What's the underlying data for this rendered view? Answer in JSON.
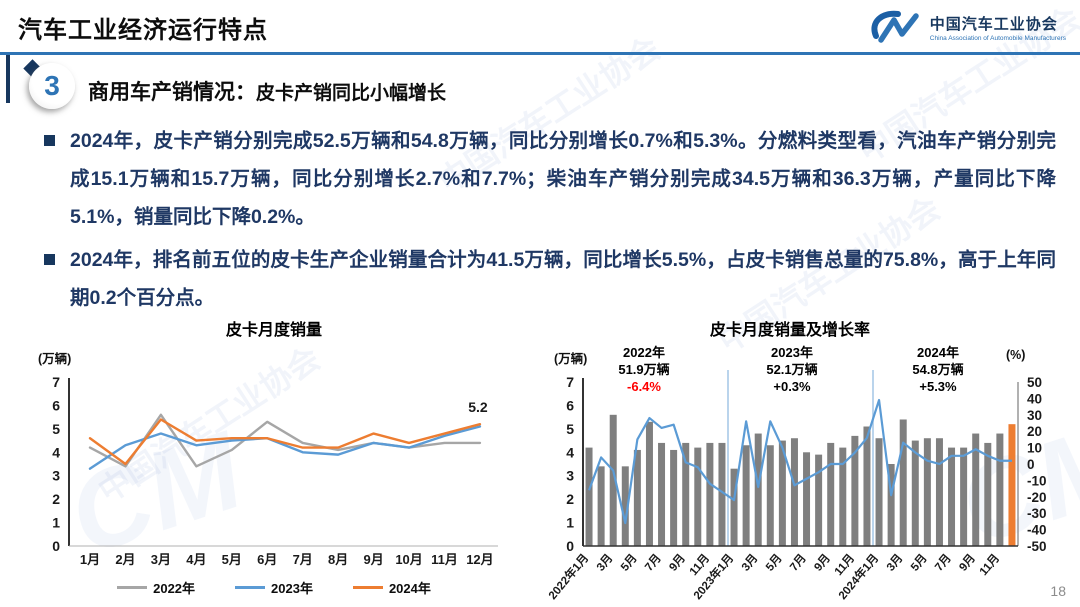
{
  "header": {
    "title": "汽车工业经济运行特点"
  },
  "logo": {
    "name_cn": "中国汽车工业协会",
    "name_en": "China Association of Automobile Manufacturers"
  },
  "section": {
    "number": "3",
    "title_prefix": "商用车产销情况：",
    "title_highlight": "皮卡产销同比小幅增长"
  },
  "bullets": [
    "2024年，皮卡产销分别完成52.5万辆和54.8万辆，同比分别增长0.7%和5.3%。分燃料类型看，汽油车产销分别完成15.1万辆和15.7万辆，同比分别增长2.7%和7.7%；柴油车产销分别完成34.5万辆和36.3万辆，产量同比下降5.1%，销量同比下降0.2%。",
    "2024年，排名前五位的皮卡生产企业销量合计为41.5万辆，同比增长5.5%，占皮卡销售总量的75.8%，高于上年同期0.2个百分点。"
  ],
  "page_number": "18",
  "watermark_text": "中国汽车工业协会",
  "watermark_logo": "CM",
  "colors": {
    "accent_blue": "#2e74b5",
    "navy": "#17375e",
    "body_text": "#1f3864",
    "gray_series": "#a6a6a6",
    "blue_series": "#5b9bd5",
    "orange_series": "#ed7d31",
    "bar_gray": "#7f7f7f",
    "negative_red": "#ff0000"
  },
  "chart_data": [
    {
      "type": "line",
      "title": "皮卡月度销量",
      "unit_label": "(万辆)",
      "categories": [
        "1月",
        "2月",
        "3月",
        "4月",
        "5月",
        "6月",
        "7月",
        "8月",
        "9月",
        "10月",
        "11月",
        "12月"
      ],
      "series": [
        {
          "name": "2022年",
          "color": "#a6a6a6",
          "values": [
            4.2,
            3.4,
            5.6,
            3.4,
            4.1,
            5.3,
            4.4,
            4.1,
            4.4,
            4.2,
            4.4,
            4.4
          ]
        },
        {
          "name": "2023年",
          "color": "#5b9bd5",
          "values": [
            3.3,
            4.3,
            4.8,
            4.3,
            4.5,
            4.6,
            4.0,
            3.9,
            4.4,
            4.2,
            4.7,
            5.1
          ]
        },
        {
          "name": "2024年",
          "color": "#ed7d31",
          "values": [
            4.6,
            3.5,
            5.4,
            4.5,
            4.6,
            4.6,
            4.2,
            4.2,
            4.8,
            4.4,
            4.8,
            5.2
          ]
        }
      ],
      "ylim": [
        0,
        7
      ],
      "yticks": [
        0,
        1,
        2,
        3,
        4,
        5,
        6,
        7
      ],
      "end_label": {
        "series": "2024年",
        "text": "5.2"
      },
      "legend_position": "bottom",
      "grid": false
    },
    {
      "type": "bar+line",
      "title": "皮卡月度销量及增长率",
      "unit_label_left": "(万辆)",
      "unit_label_right": "(%)",
      "bars": [
        4.2,
        3.4,
        5.6,
        3.4,
        4.1,
        5.3,
        4.4,
        4.1,
        4.4,
        4.2,
        4.4,
        4.4,
        3.3,
        4.3,
        4.8,
        4.3,
        4.5,
        4.6,
        4.0,
        3.9,
        4.4,
        4.2,
        4.7,
        5.1,
        4.6,
        3.5,
        5.4,
        4.5,
        4.6,
        4.6,
        4.2,
        4.2,
        4.8,
        4.4,
        4.8,
        5.2
      ],
      "growth_line": [
        -16,
        4,
        -4,
        -36,
        15,
        28,
        22,
        24,
        1,
        -2,
        -12,
        -17,
        -22,
        26,
        -14,
        26,
        10,
        -13,
        -9,
        -5,
        0,
        0,
        7,
        16,
        39,
        -19,
        13,
        7,
        2,
        0,
        5,
        5,
        9,
        5,
        2,
        2
      ],
      "tick_labels": [
        "2022年1月",
        "3月",
        "5月",
        "7月",
        "9月",
        "11月",
        "2023年1月",
        "3月",
        "5月",
        "7月",
        "9月",
        "11月",
        "2024年1月",
        "3月",
        "5月",
        "7月",
        "9月",
        "11月"
      ],
      "ylim_left": [
        0,
        7
      ],
      "yticks_left": [
        0,
        1,
        2,
        3,
        4,
        5,
        6,
        7
      ],
      "ylim_right": [
        -50,
        50
      ],
      "yticks_right": [
        50,
        40,
        30,
        20,
        10,
        0,
        -10,
        -20,
        -30,
        -40,
        -50
      ],
      "bar_color": "#7f7f7f",
      "highlight_last_bar_color": "#ed7d31",
      "line_color": "#5b9bd5",
      "separator_color": "#a8c9e8",
      "separators_after_index": [
        11,
        23
      ],
      "annotations": [
        {
          "year": "2022年",
          "total": "51.9万辆",
          "growth": "-6.4%",
          "growth_color": "#ff0000"
        },
        {
          "year": "2023年",
          "total": "52.1万辆",
          "growth": "+0.3%",
          "growth_color": "#000000"
        },
        {
          "year": "2024年",
          "total": "54.8万辆",
          "growth": "+5.3%",
          "growth_color": "#000000"
        }
      ],
      "grid": false
    }
  ]
}
